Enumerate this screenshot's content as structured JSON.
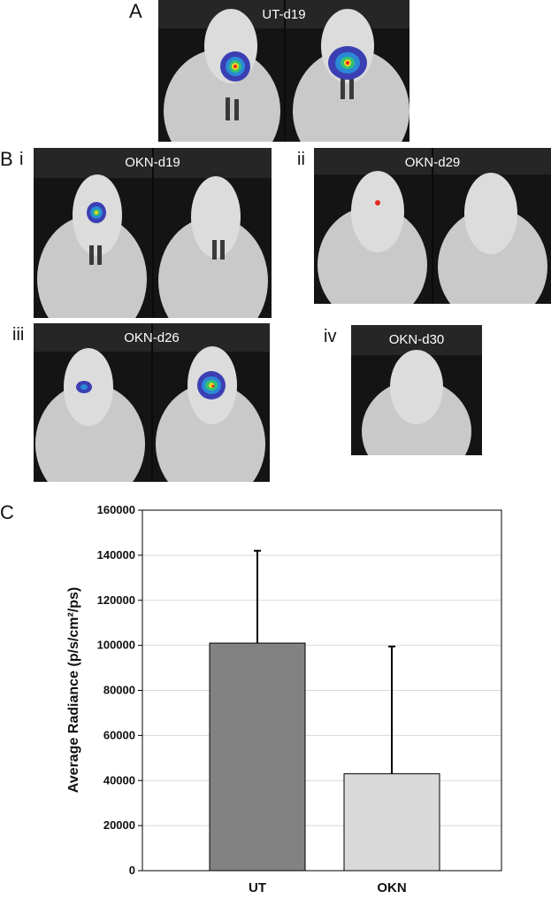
{
  "panels": {
    "a": {
      "letter": "A",
      "title": "UT-d19"
    },
    "b": {
      "letter": "B",
      "i": {
        "numeral": "i",
        "title": "OKN-d19"
      },
      "ii": {
        "numeral": "ii",
        "title": "OKN-d29"
      },
      "iii": {
        "numeral": "iii",
        "title": "OKN-d26"
      },
      "iv": {
        "numeral": "iv",
        "title": "OKN-d30"
      }
    },
    "c": {
      "letter": "C"
    }
  },
  "colors": {
    "ut_bar": "#828282",
    "okn_bar": "#d9d9d9",
    "gridline": "#d9d9d9",
    "photo_background": "#141414"
  },
  "chart_data": {
    "type": "bar",
    "categories": [
      "UT",
      "OKN"
    ],
    "values": [
      101000,
      43000
    ],
    "error_upper": [
      142000,
      99500
    ],
    "ylabel": "Average Radiance (p/s/cm²/ps)",
    "ylim": [
      0,
      160000
    ],
    "yticks": [
      "0",
      "20000",
      "40000",
      "60000",
      "80000",
      "100000",
      "120000",
      "140000",
      "160000"
    ],
    "grid": true
  }
}
